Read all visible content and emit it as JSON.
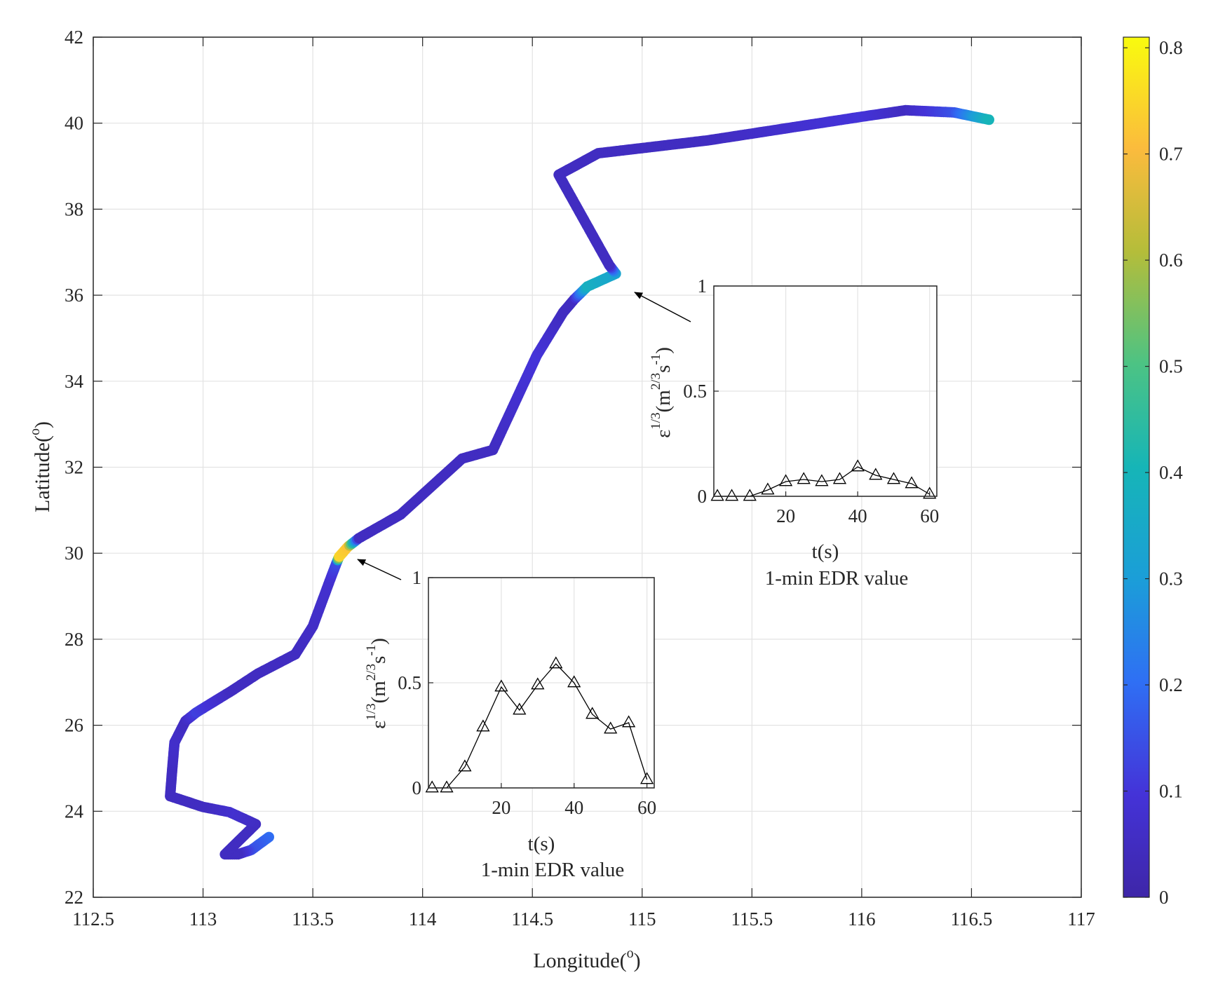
{
  "chart_data": [
    {
      "type": "scatter",
      "title": "",
      "xlabel_text": "Longitude(",
      "xlabel_sup": "o",
      "xlabel_close": ")",
      "ylabel_text": "Latitude(",
      "ylabel_sup": "o",
      "ylabel_close": ")",
      "xlim": [
        112.5,
        117
      ],
      "ylim": [
        22,
        42
      ],
      "xticks": [
        "112.5",
        "113",
        "113.5",
        "114",
        "114.5",
        "115",
        "115.5",
        "116",
        "116.5",
        "117"
      ],
      "yticks": [
        "22",
        "24",
        "26",
        "28",
        "30",
        "32",
        "34",
        "36",
        "38",
        "40",
        "42"
      ],
      "grid": true,
      "colorbar": {
        "colormap": "parula",
        "limits": [
          0,
          0.81
        ],
        "ticks": [
          "0",
          "0.1",
          "0.2",
          "0.3",
          "0.4",
          "0.5",
          "0.6",
          "0.7",
          "0.8"
        ]
      },
      "track": [
        {
          "lon": 113.3,
          "lat": 23.4,
          "edr": 0.2
        },
        {
          "lon": 113.22,
          "lat": 23.1,
          "edr": 0.15
        },
        {
          "lon": 113.16,
          "lat": 23.0,
          "edr": 0.05
        },
        {
          "lon": 113.1,
          "lat": 23.0,
          "edr": 0.05
        },
        {
          "lon": 113.16,
          "lat": 23.3,
          "edr": 0.05
        },
        {
          "lon": 113.24,
          "lat": 23.7,
          "edr": 0.05
        },
        {
          "lon": 113.12,
          "lat": 23.98,
          "edr": 0.08
        },
        {
          "lon": 113.0,
          "lat": 24.1,
          "edr": 0.05
        },
        {
          "lon": 112.85,
          "lat": 24.35,
          "edr": 0.05
        },
        {
          "lon": 112.86,
          "lat": 25.0,
          "edr": 0.05
        },
        {
          "lon": 112.87,
          "lat": 25.6,
          "edr": 0.07
        },
        {
          "lon": 112.92,
          "lat": 26.1,
          "edr": 0.05
        },
        {
          "lon": 112.97,
          "lat": 26.3,
          "edr": 0.12
        },
        {
          "lon": 113.13,
          "lat": 26.8,
          "edr": 0.05
        },
        {
          "lon": 113.25,
          "lat": 27.2,
          "edr": 0.05
        },
        {
          "lon": 113.42,
          "lat": 27.65,
          "edr": 0.05
        },
        {
          "lon": 113.5,
          "lat": 28.3,
          "edr": 0.06
        },
        {
          "lon": 113.58,
          "lat": 29.4,
          "edr": 0.08
        },
        {
          "lon": 113.61,
          "lat": 29.8,
          "edr": 0.14
        },
        {
          "lon": 113.62,
          "lat": 29.92,
          "edr": 0.75
        },
        {
          "lon": 113.66,
          "lat": 30.15,
          "edr": 0.72
        },
        {
          "lon": 113.71,
          "lat": 30.35,
          "edr": 0.05
        },
        {
          "lon": 113.9,
          "lat": 30.9,
          "edr": 0.05
        },
        {
          "lon": 114.18,
          "lat": 32.2,
          "edr": 0.05
        },
        {
          "lon": 114.32,
          "lat": 32.4,
          "edr": 0.05
        },
        {
          "lon": 114.52,
          "lat": 34.6,
          "edr": 0.1
        },
        {
          "lon": 114.64,
          "lat": 35.6,
          "edr": 0.05
        },
        {
          "lon": 114.69,
          "lat": 35.9,
          "edr": 0.05
        },
        {
          "lon": 114.75,
          "lat": 36.2,
          "edr": 0.38
        },
        {
          "lon": 114.88,
          "lat": 36.5,
          "edr": 0.33
        },
        {
          "lon": 114.85,
          "lat": 36.7,
          "edr": 0.05
        },
        {
          "lon": 114.62,
          "lat": 38.8,
          "edr": 0.05
        },
        {
          "lon": 114.8,
          "lat": 39.3,
          "edr": 0.05
        },
        {
          "lon": 115.3,
          "lat": 39.6,
          "edr": 0.05
        },
        {
          "lon": 116.0,
          "lat": 40.15,
          "edr": 0.1
        },
        {
          "lon": 116.2,
          "lat": 40.3,
          "edr": 0.05
        },
        {
          "lon": 116.42,
          "lat": 40.25,
          "edr": 0.15
        },
        {
          "lon": 116.58,
          "lat": 40.08,
          "edr": 0.4
        }
      ]
    },
    {
      "type": "line",
      "title": "1-min EDR value",
      "xlabel": "t(s)",
      "ylabel_base": "ε",
      "ylabel_sup1": "1/3",
      "ylabel_unit": "(m",
      "ylabel_sup2": "2/3",
      "ylabel_unit2": "s",
      "ylabel_sup3": "-1",
      "ylabel_close": ")",
      "xlim": [
        0,
        62
      ],
      "ylim": [
        0,
        1
      ],
      "xticks": [
        "20",
        "40",
        "60"
      ],
      "yticks": [
        "0",
        "0.5",
        "1"
      ],
      "marker": "triangle",
      "x": [
        1,
        5,
        10,
        15,
        20,
        25,
        30,
        35,
        40,
        45,
        50,
        55,
        60
      ],
      "y": [
        0.0,
        0.0,
        0.1,
        0.29,
        0.48,
        0.37,
        0.49,
        0.59,
        0.5,
        0.35,
        0.28,
        0.31,
        0.04
      ]
    },
    {
      "type": "line",
      "title": "1-min EDR value",
      "xlabel": "t(s)",
      "ylabel_base": "ε",
      "ylabel_sup1": "1/3",
      "ylabel_unit": "(m",
      "ylabel_sup2": "2/3",
      "ylabel_unit2": "s",
      "ylabel_sup3": "-1",
      "ylabel_close": ")",
      "xlim": [
        0,
        62
      ],
      "ylim": [
        0,
        1
      ],
      "xticks": [
        "20",
        "40",
        "60"
      ],
      "yticks": [
        "0",
        "0.5",
        "1"
      ],
      "marker": "triangle",
      "x": [
        1,
        5,
        10,
        15,
        20,
        25,
        30,
        35,
        40,
        45,
        50,
        55,
        60
      ],
      "y": [
        0.0,
        0.0,
        0.0,
        0.03,
        0.07,
        0.08,
        0.07,
        0.08,
        0.14,
        0.1,
        0.08,
        0.06,
        0.01
      ]
    }
  ]
}
